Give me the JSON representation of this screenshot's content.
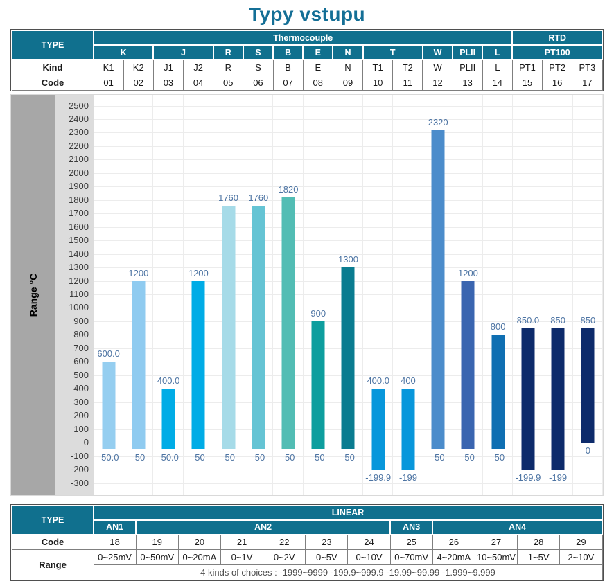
{
  "title": "Typy vstupu",
  "colors": {
    "header_teal": "#10708e",
    "title_teal": "#146f96",
    "value_label": "#4d74a3",
    "axis_band_dark": "#a7a7a7",
    "axis_band_light": "#dcdcdc"
  },
  "input_table": {
    "corner_label": "TYPE",
    "groups": [
      {
        "label": "Thermocouple",
        "span": 14
      },
      {
        "label": "RTD",
        "span": 3
      }
    ],
    "types": [
      {
        "label": "K",
        "span": 2
      },
      {
        "label": "J",
        "span": 2
      },
      {
        "label": "R",
        "span": 1
      },
      {
        "label": "S",
        "span": 1
      },
      {
        "label": "B",
        "span": 1
      },
      {
        "label": "E",
        "span": 1
      },
      {
        "label": "N",
        "span": 1
      },
      {
        "label": "T",
        "span": 2
      },
      {
        "label": "W",
        "span": 1
      },
      {
        "label": "PLII",
        "span": 1
      },
      {
        "label": "L",
        "span": 1
      },
      {
        "label": "PT100",
        "span": 3
      }
    ],
    "kind_label": "Kind",
    "kinds": [
      "K1",
      "K2",
      "J1",
      "J2",
      "R",
      "S",
      "B",
      "E",
      "N",
      "T1",
      "T2",
      "W",
      "PLII",
      "L",
      "PT1",
      "PT2",
      "PT3"
    ],
    "code_label": "Code",
    "codes": [
      "01",
      "02",
      "03",
      "04",
      "05",
      "06",
      "07",
      "08",
      "09",
      "10",
      "11",
      "12",
      "13",
      "14",
      "15",
      "16",
      "17"
    ]
  },
  "chart_data": {
    "type": "bar",
    "subtype": "floating-range-bars",
    "title": "Typy vstupu",
    "ylabel": "Range °C",
    "ylim": [
      -300,
      2500
    ],
    "ytick_step": 100,
    "grid": true,
    "legend": "none",
    "categories": [
      "K1",
      "K2",
      "J1",
      "J2",
      "R",
      "S",
      "B",
      "E",
      "N",
      "T1",
      "T2",
      "W",
      "PLII",
      "L",
      "PT1",
      "PT2",
      "PT3"
    ],
    "bars": [
      {
        "name": "K1",
        "low": -50,
        "high": 600,
        "low_label": "-50.0",
        "high_label": "600.0",
        "color": "#95cef0"
      },
      {
        "name": "K2",
        "low": -50,
        "high": 1200,
        "low_label": "-50",
        "high_label": "1200",
        "color": "#8fcbf0"
      },
      {
        "name": "J1",
        "low": -50,
        "high": 400,
        "low_label": "-50.0",
        "high_label": "400.0",
        "color": "#00ace6"
      },
      {
        "name": "J2",
        "low": -50,
        "high": 1200,
        "low_label": "-50",
        "high_label": "1200",
        "color": "#00ace6"
      },
      {
        "name": "R",
        "low": -50,
        "high": 1760,
        "low_label": "-50",
        "high_label": "1760",
        "color": "#a6dbe8"
      },
      {
        "name": "S",
        "low": -50,
        "high": 1760,
        "low_label": "-50",
        "high_label": "1760",
        "color": "#65c4d4"
      },
      {
        "name": "B",
        "low": -50,
        "high": 1820,
        "low_label": "-50",
        "high_label": "1820",
        "color": "#52bdb4"
      },
      {
        "name": "E",
        "low": -50,
        "high": 900,
        "low_label": "-50",
        "high_label": "900",
        "color": "#0d9e9e"
      },
      {
        "name": "N",
        "low": -50,
        "high": 1300,
        "low_label": "-50",
        "high_label": "1300",
        "color": "#0a7c90"
      },
      {
        "name": "T1",
        "low": -199.9,
        "high": 400,
        "low_label": "-199.9",
        "high_label": "400.0",
        "color": "#0897db"
      },
      {
        "name": "T2",
        "low": -199,
        "high": 400,
        "low_label": "-199",
        "high_label": "400",
        "color": "#0897db"
      },
      {
        "name": "W",
        "low": -50,
        "high": 2320,
        "low_label": "-50",
        "high_label": "2320",
        "color": "#4b8ccb"
      },
      {
        "name": "PLII",
        "low": -50,
        "high": 1200,
        "low_label": "-50",
        "high_label": "1200",
        "color": "#3a65b0"
      },
      {
        "name": "L",
        "low": -50,
        "high": 800,
        "low_label": "-50",
        "high_label": "800",
        "color": "#0f6fb2"
      },
      {
        "name": "PT1",
        "low": -199.9,
        "high": 850,
        "low_label": "-199.9",
        "high_label": "850.0",
        "color": "#0d2b6b"
      },
      {
        "name": "PT2",
        "low": -199,
        "high": 850,
        "low_label": "-199",
        "high_label": "850",
        "color": "#0d2b6b"
      },
      {
        "name": "PT3",
        "low": 0,
        "high": 850,
        "low_label": "0",
        "high_label": "850",
        "color": "#0d2b6b"
      }
    ]
  },
  "linear_table": {
    "corner_label": "TYPE",
    "group_label": "LINEAR",
    "subgroups": [
      {
        "label": "AN1",
        "span": 1
      },
      {
        "label": "AN2",
        "span": 6
      },
      {
        "label": "AN3",
        "span": 1
      },
      {
        "label": "AN4",
        "span": 4
      }
    ],
    "code_label": "Code",
    "codes": [
      "18",
      "19",
      "20",
      "21",
      "22",
      "23",
      "24",
      "25",
      "26",
      "27",
      "28",
      "29"
    ],
    "range_label": "Range",
    "ranges": [
      "0~25mV",
      "0~50mV",
      "0~20mA",
      "0~1V",
      "0~2V",
      "0~5V",
      "0~10V",
      "0~70mV",
      "4~20mA",
      "10~50mV",
      "1~5V",
      "2~10V"
    ],
    "note": "4 kinds of choices : -1999~9999  -199.9~999.9  -19.99~99.99  -1.999~9.999"
  }
}
